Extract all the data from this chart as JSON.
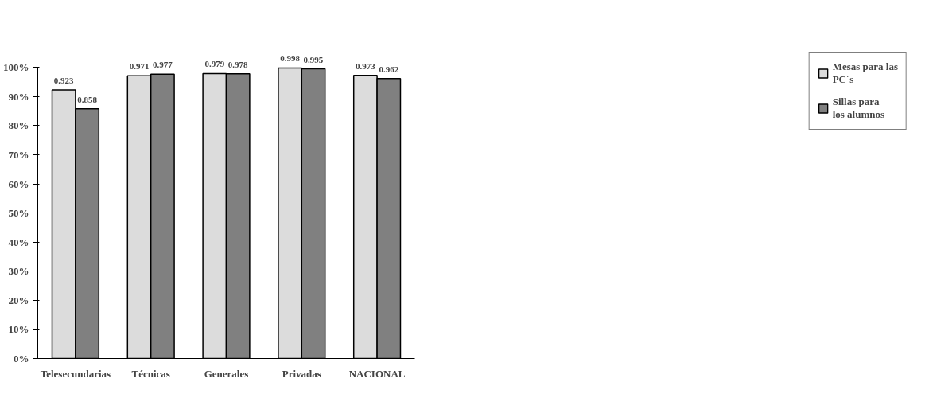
{
  "chart_data": {
    "type": "bar",
    "categories": [
      "Telesecundarias",
      "Técnicas",
      "Generales",
      "Privadas",
      "NACIONAL"
    ],
    "series": [
      {
        "name": "Mesas para las PC´s",
        "color": "#dcdcdc",
        "values": [
          0.923,
          0.971,
          0.979,
          0.998,
          0.973
        ]
      },
      {
        "name": "Sillas para los alumnos",
        "color": "#808080",
        "values": [
          0.858,
          0.977,
          0.978,
          0.995,
          0.962
        ]
      }
    ],
    "ylim": [
      0,
      1
    ],
    "yticks": [
      {
        "value": 0,
        "label": "0%"
      },
      {
        "value": 0.1,
        "label": "10%"
      },
      {
        "value": 0.2,
        "label": "20%"
      },
      {
        "value": 0.3,
        "label": "30%"
      },
      {
        "value": 0.4,
        "label": "40%"
      },
      {
        "value": 0.5,
        "label": "50%"
      },
      {
        "value": 0.6,
        "label": "60%"
      },
      {
        "value": 0.7,
        "label": "70%"
      },
      {
        "value": 0.8,
        "label": "80%"
      },
      {
        "value": 0.9,
        "label": "90%"
      },
      {
        "value": 1,
        "label": "100%"
      }
    ],
    "data_labels": true,
    "legend": "right",
    "grid": false
  }
}
